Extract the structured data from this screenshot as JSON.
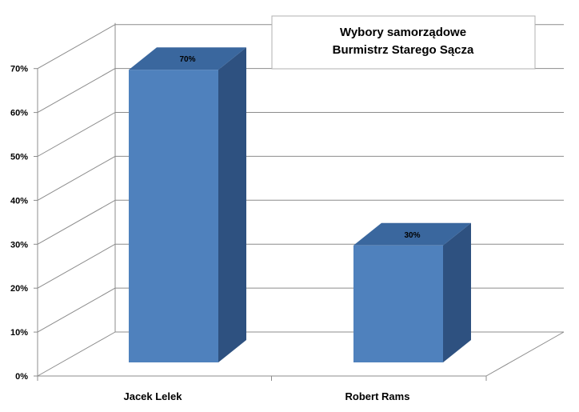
{
  "chart_data": {
    "type": "bar",
    "title": [
      "Wybory samorządowe",
      "Burmistrz Starego Sącza"
    ],
    "categories": [
      "Jacek Lelek",
      "Robert Rams"
    ],
    "values": [
      70,
      30
    ],
    "data_labels": [
      "70%",
      "30%"
    ],
    "y_ticks": [
      "0%",
      "10%",
      "20%",
      "30%",
      "40%",
      "50%",
      "60%",
      "70%"
    ],
    "ylim": [
      0,
      70
    ],
    "grid": true,
    "three_d": true,
    "colors": {
      "bar_front": "#4f81bd",
      "bar_top": "#3a679e",
      "bar_side": "#2e5180",
      "grid": "#8c8c8c",
      "axis": "#8c8c8c"
    }
  }
}
